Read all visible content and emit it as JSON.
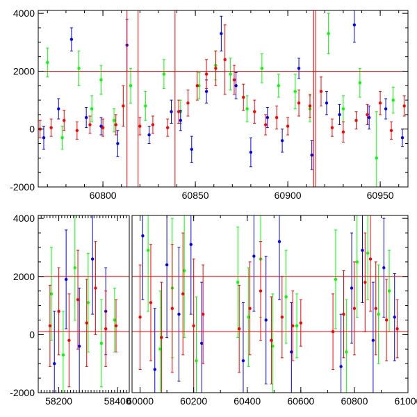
{
  "chart_data": [
    {
      "type": "scatter",
      "title": "",
      "xlabel": "",
      "ylabel": "",
      "xlim": [
        60765,
        60965
      ],
      "ylim": [
        -2000,
        4100
      ],
      "xticks": [
        60800,
        60850,
        60900,
        60950
      ],
      "yticks": [
        -2000,
        0,
        2000,
        4000
      ],
      "hlines": [
        2000
      ],
      "vlines": [
        60813,
        60819,
        60839,
        60914,
        60915
      ],
      "series": [
        {
          "color": "#00ff00",
          "x": [
            60770,
            60778,
            60787,
            60794,
            60799,
            60806,
            60815,
            60823,
            60833,
            60842,
            60852,
            60861,
            60869,
            60878,
            60886,
            60895,
            60904,
            60912,
            60922,
            60930,
            60939,
            60948,
            60957
          ],
          "values": [
            2300,
            -300,
            2100,
            700,
            1700,
            300,
            1500,
            800,
            1900,
            600,
            1500,
            2200,
            1900,
            700,
            2100,
            1500,
            1300,
            700,
            3300,
            700,
            1600,
            -1000,
            1000
          ],
          "err": [
            500,
            400,
            600,
            450,
            500,
            400,
            600,
            500,
            500,
            400,
            450,
            500,
            550,
            450,
            500,
            400,
            600,
            450,
            700,
            450,
            500,
            1600,
            450
          ]
        },
        {
          "color": "#0000ff",
          "x": [
            60768,
            60776,
            60783,
            60791,
            60799,
            60808,
            60813,
            60825,
            60837,
            60842,
            60848,
            60856,
            60864,
            60872,
            60880,
            60889,
            60897,
            60906,
            60913,
            60921,
            60928,
            60936,
            60944,
            60953,
            60962
          ],
          "values": [
            -300,
            700,
            3100,
            400,
            100,
            -500,
            2900,
            -200,
            600,
            300,
            -700,
            1300,
            3300,
            1500,
            -800,
            400,
            -400,
            2100,
            -900,
            900,
            500,
            3600,
            400,
            700,
            -300
          ],
          "err": [
            400,
            350,
            400,
            350,
            300,
            450,
            900,
            300,
            400,
            350,
            450,
            400,
            600,
            450,
            500,
            350,
            400,
            350,
            500,
            400,
            350,
            600,
            400,
            350,
            300
          ]
        },
        {
          "color": "#ff0000",
          "x": [
            60766,
            60772,
            60779,
            60786,
            60793,
            60800,
            60807,
            60811,
            60820,
            60827,
            60835,
            60841,
            60846,
            60851,
            60856,
            60861,
            60866,
            60871,
            60876,
            60882,
            60888,
            60894,
            60900,
            60906,
            60912,
            60918,
            60924,
            60930,
            60937,
            60943,
            60950,
            60956,
            60963
          ],
          "values": [
            0,
            50,
            300,
            -50,
            150,
            50,
            150,
            800,
            100,
            150,
            50,
            600,
            900,
            1500,
            1900,
            2100,
            2400,
            1700,
            1100,
            600,
            150,
            400,
            100,
            900,
            800,
            1300,
            50,
            -100,
            300,
            500,
            900,
            -50,
            800
          ],
          "err": [
            300,
            300,
            350,
            300,
            300,
            300,
            350,
            700,
            300,
            300,
            300,
            400,
            450,
            500,
            500,
            600,
            1200,
            500,
            450,
            400,
            350,
            400,
            300,
            450,
            400,
            500,
            300,
            350,
            300,
            350,
            400,
            300,
            350
          ]
        }
      ]
    },
    {
      "type": "scatter",
      "title": "",
      "xlabel": "",
      "ylabel": "",
      "ylim": [
        -2000,
        4100
      ],
      "yticks": [
        -2000,
        0,
        2000,
        4000
      ],
      "hlines": [
        2000,
        100
      ],
      "x_segments": [
        {
          "xlim": [
            58130,
            58440
          ],
          "xticks": [
            58200,
            58400
          ]
        },
        {
          "xlim": [
            59970,
            61000
          ],
          "xticks": [
            60000,
            60200,
            60400,
            60600,
            60800,
            61000
          ]
        }
      ],
      "series": [
        {
          "color": "#00ff00",
          "x": [
            58175,
            58215,
            58255,
            58300,
            58345,
            58390,
            60030,
            60075,
            60120,
            60165,
            60210,
            60365,
            60405,
            60450,
            60495,
            60545,
            60585,
            60730,
            60770,
            60810,
            60850,
            60890,
            60930
          ],
          "values": [
            1400,
            -700,
            2300,
            1100,
            -300,
            500,
            2900,
            -500,
            1600,
            2200,
            -900,
            1800,
            600,
            2600,
            -400,
            1300,
            300,
            1900,
            -600,
            2500,
            2800,
            700,
            1500
          ],
          "err": [
            1600,
            1500,
            1800,
            1700,
            1500,
            1100,
            2100,
            2000,
            2400,
            2300,
            2200,
            1900,
            1700,
            2000,
            1800,
            1600,
            1100,
            1700,
            1800,
            1900,
            1600,
            1700,
            1400
          ]
        },
        {
          "color": "#0000ff",
          "x": [
            58185,
            58225,
            58270,
            58315,
            58360,
            60010,
            60055,
            60100,
            60145,
            60190,
            60230,
            60385,
            60425,
            60470,
            60520,
            60565,
            60750,
            60790,
            60830,
            60870,
            60910,
            60950
          ],
          "values": [
            -1000,
            1900,
            -400,
            2600,
            800,
            3400,
            -1200,
            2400,
            700,
            3100,
            -300,
            -900,
            2700,
            500,
            3200,
            -600,
            -1100,
            1600,
            2900,
            -200,
            2300,
            600
          ],
          "err": [
            1800,
            1700,
            2000,
            1900,
            1500,
            2200,
            2100,
            2500,
            2300,
            2400,
            2100,
            2000,
            1900,
            2200,
            2000,
            1700,
            1800,
            1900,
            1800,
            2000,
            1700,
            1500
          ]
        },
        {
          "color": "#ff0000",
          "x": [
            58170,
            58200,
            58235,
            58265,
            58295,
            58325,
            58360,
            58395,
            60000,
            60040,
            60080,
            60120,
            60160,
            60200,
            60235,
            60370,
            60410,
            60450,
            60490,
            60530,
            60570,
            60600,
            60720,
            60760,
            60800,
            60840,
            60860,
            60880,
            60920,
            60960
          ],
          "values": [
            300,
            800,
            -200,
            1200,
            400,
            1600,
            200,
            300,
            600,
            1100,
            -100,
            900,
            1400,
            300,
            700,
            200,
            900,
            1500,
            -200,
            600,
            300,
            400,
            100,
            700,
            900,
            1800,
            2600,
            900,
            500,
            200
          ],
          "err": [
            1400,
            1500,
            1600,
            1700,
            1500,
            1600,
            1300,
            900,
            1800,
            2000,
            1900,
            2200,
            2100,
            2300,
            1700,
            1500,
            1600,
            1700,
            1500,
            1400,
            1200,
            800,
            1300,
            1500,
            1600,
            1700,
            1800,
            1600,
            1400,
            1000
          ]
        }
      ]
    }
  ]
}
